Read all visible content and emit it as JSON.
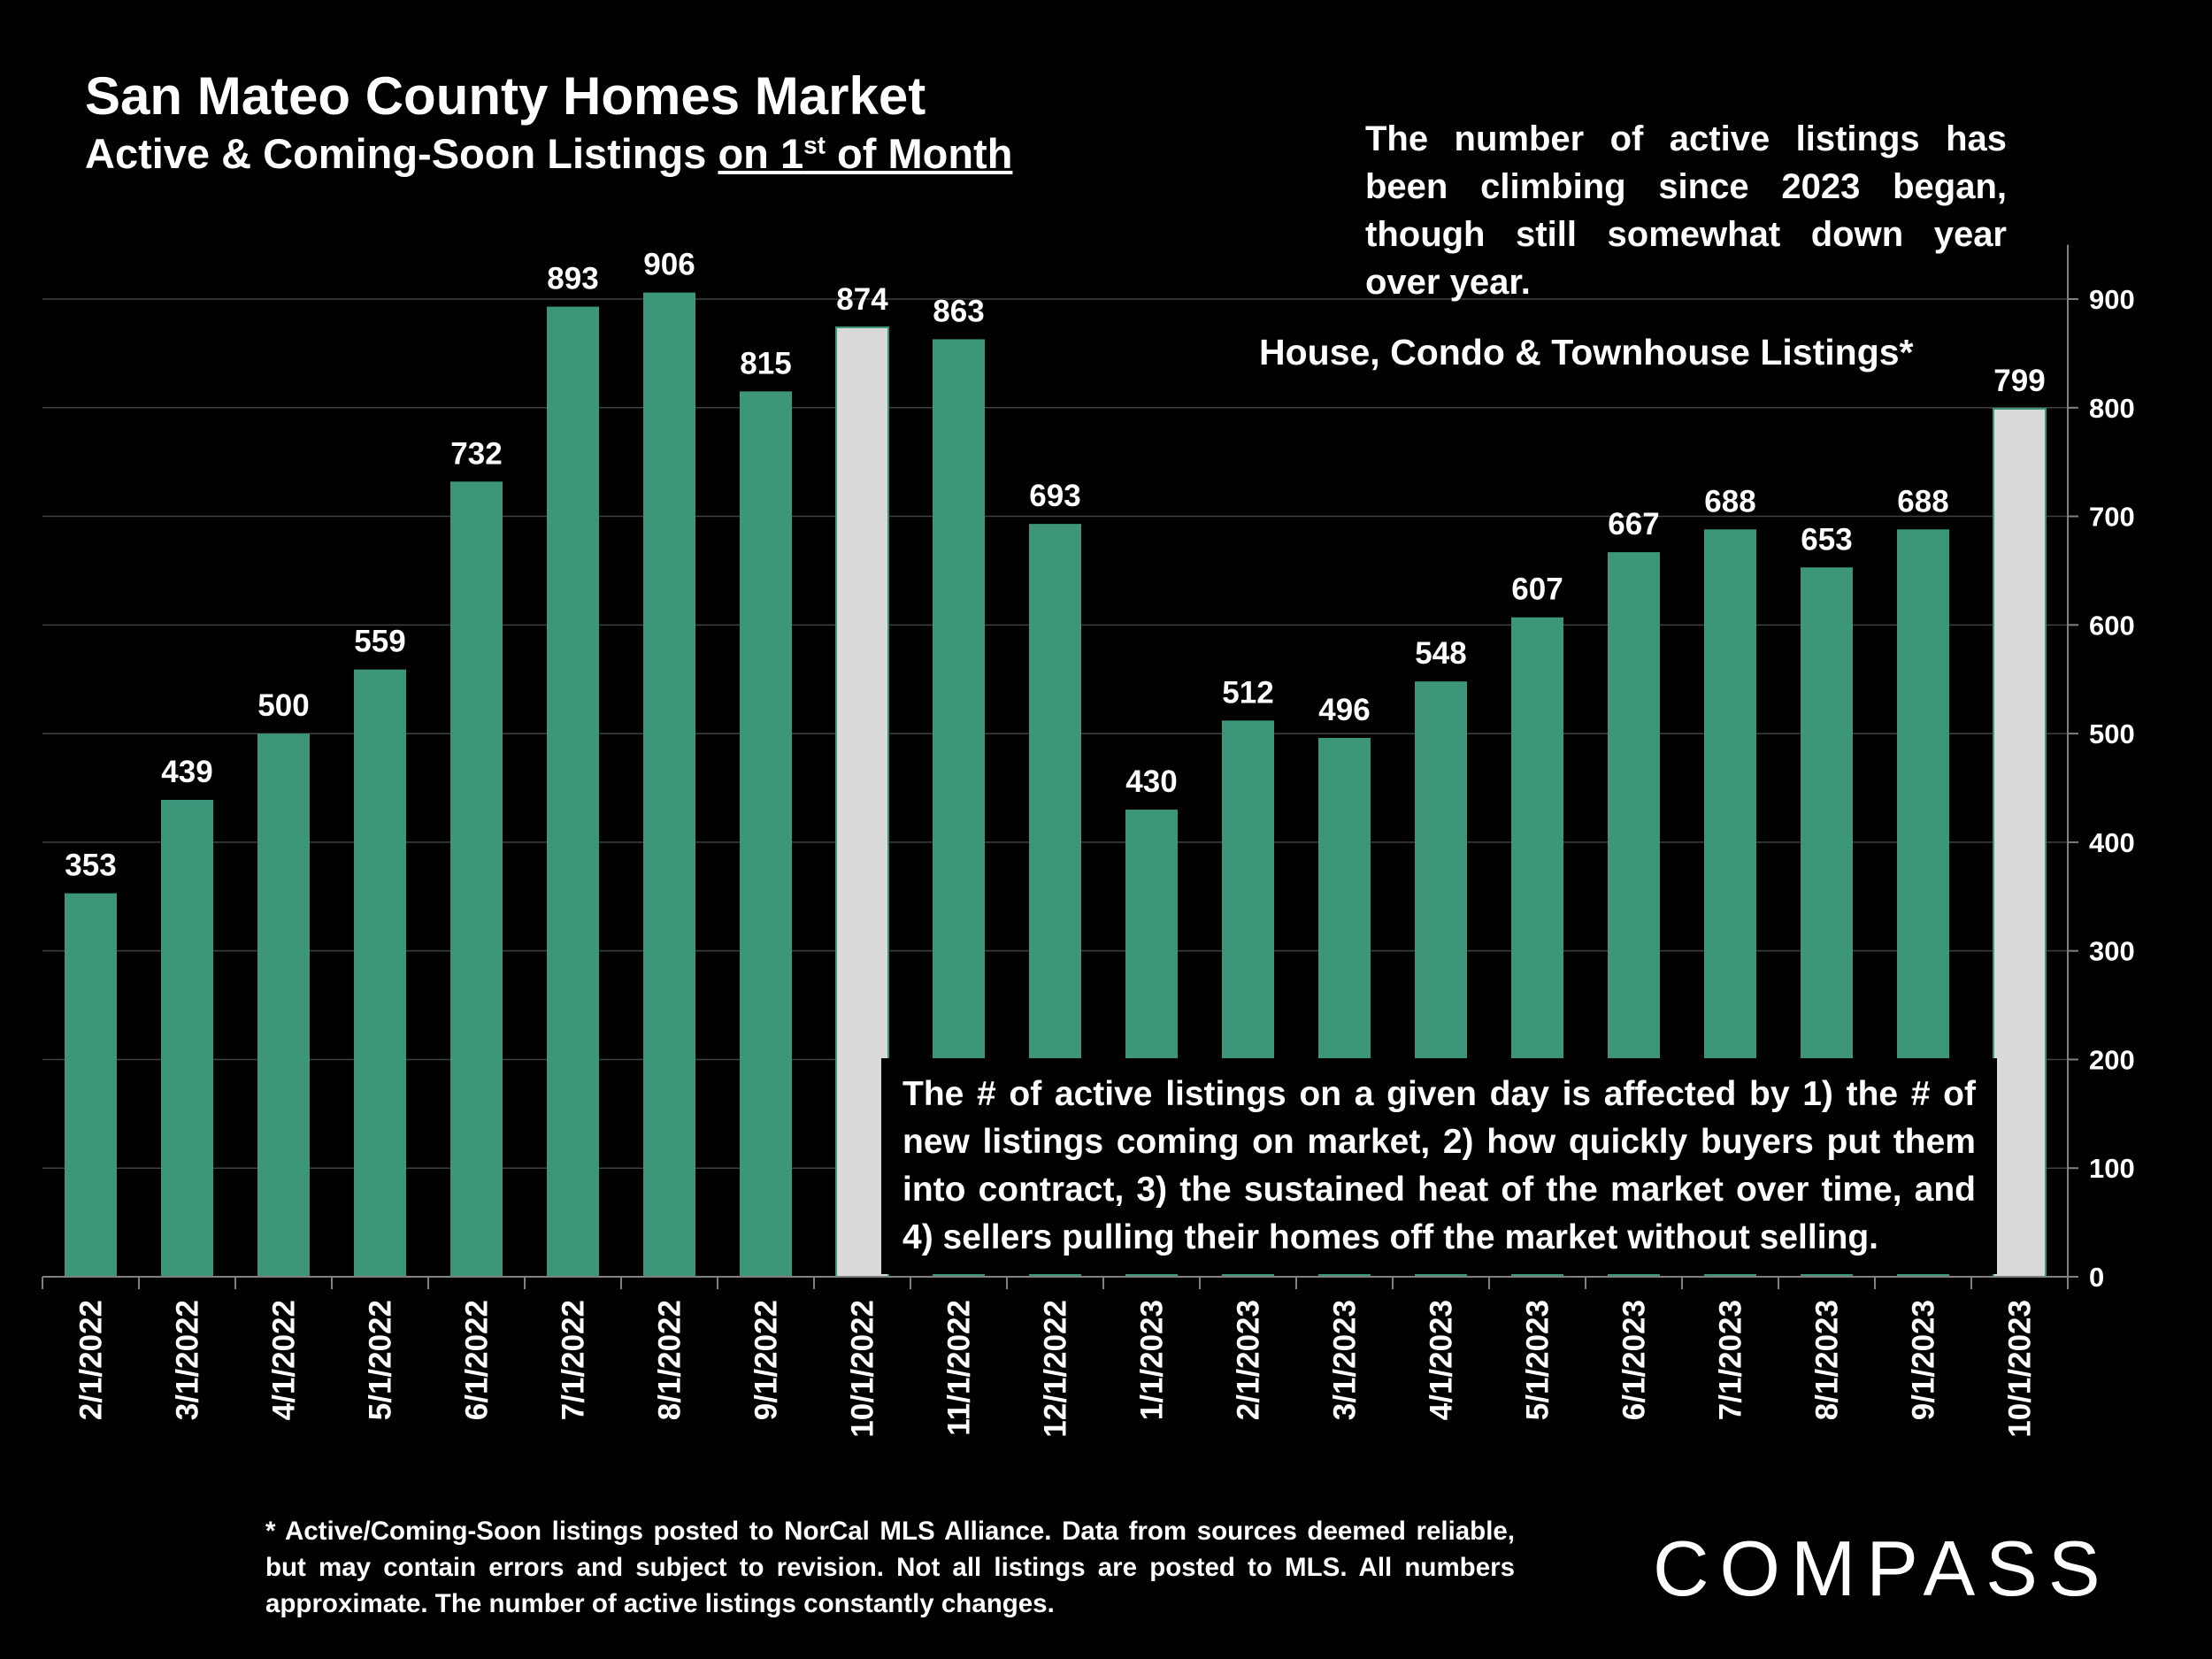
{
  "chart_data": {
    "type": "bar",
    "title": "San Mateo County Homes Market",
    "subtitle_prefix": "Active & Coming-Soon Listings ",
    "subtitle_underlined": "on 1",
    "subtitle_sup": "st",
    "subtitle_suffix": " of Month",
    "series_label": "House, Condo & Townhouse Listings*",
    "categories": [
      "2/1/2022",
      "3/1/2022",
      "4/1/2022",
      "5/1/2022",
      "6/1/2022",
      "7/1/2022",
      "8/1/2022",
      "9/1/2022",
      "10/1/2022",
      "11/1/2022",
      "12/1/2022",
      "1/1/2023",
      "2/1/2023",
      "3/1/2023",
      "4/1/2023",
      "5/1/2023",
      "6/1/2023",
      "7/1/2023",
      "8/1/2023",
      "9/1/2023",
      "10/1/2023"
    ],
    "values": [
      353,
      439,
      500,
      559,
      732,
      893,
      906,
      815,
      874,
      863,
      693,
      430,
      512,
      496,
      548,
      607,
      667,
      688,
      653,
      688,
      799
    ],
    "highlighted": [
      8,
      20
    ],
    "ylim": [
      0,
      950
    ],
    "yticks": [
      0,
      100,
      200,
      300,
      400,
      500,
      600,
      700,
      800,
      900
    ],
    "y_axis_side": "right",
    "grid": true,
    "colors": {
      "bar": "#3d967a",
      "highlight": "#d9d9d9",
      "grid": "#404040",
      "axis": "#808080"
    },
    "annotations": {
      "top_note": "The number of active listings has been climbing since 2023 began, though still somewhat down year over year.",
      "box_note": "The # of active listings on a given day is affected by 1) the # of new listings coming on market, 2) how quickly buyers put them into contract, 3) the sustained heat of the market over time, and 4) sellers pulling their homes off the market without selling."
    }
  },
  "footnote": "* Active/Coming-Soon listings posted to NorCal MLS Alliance.  Data from sources deemed reliable, but may contain errors and subject to revision.  Not all listings are posted to MLS. All numbers approximate. The number of active listings constantly changes.",
  "logo": "COMPASS"
}
